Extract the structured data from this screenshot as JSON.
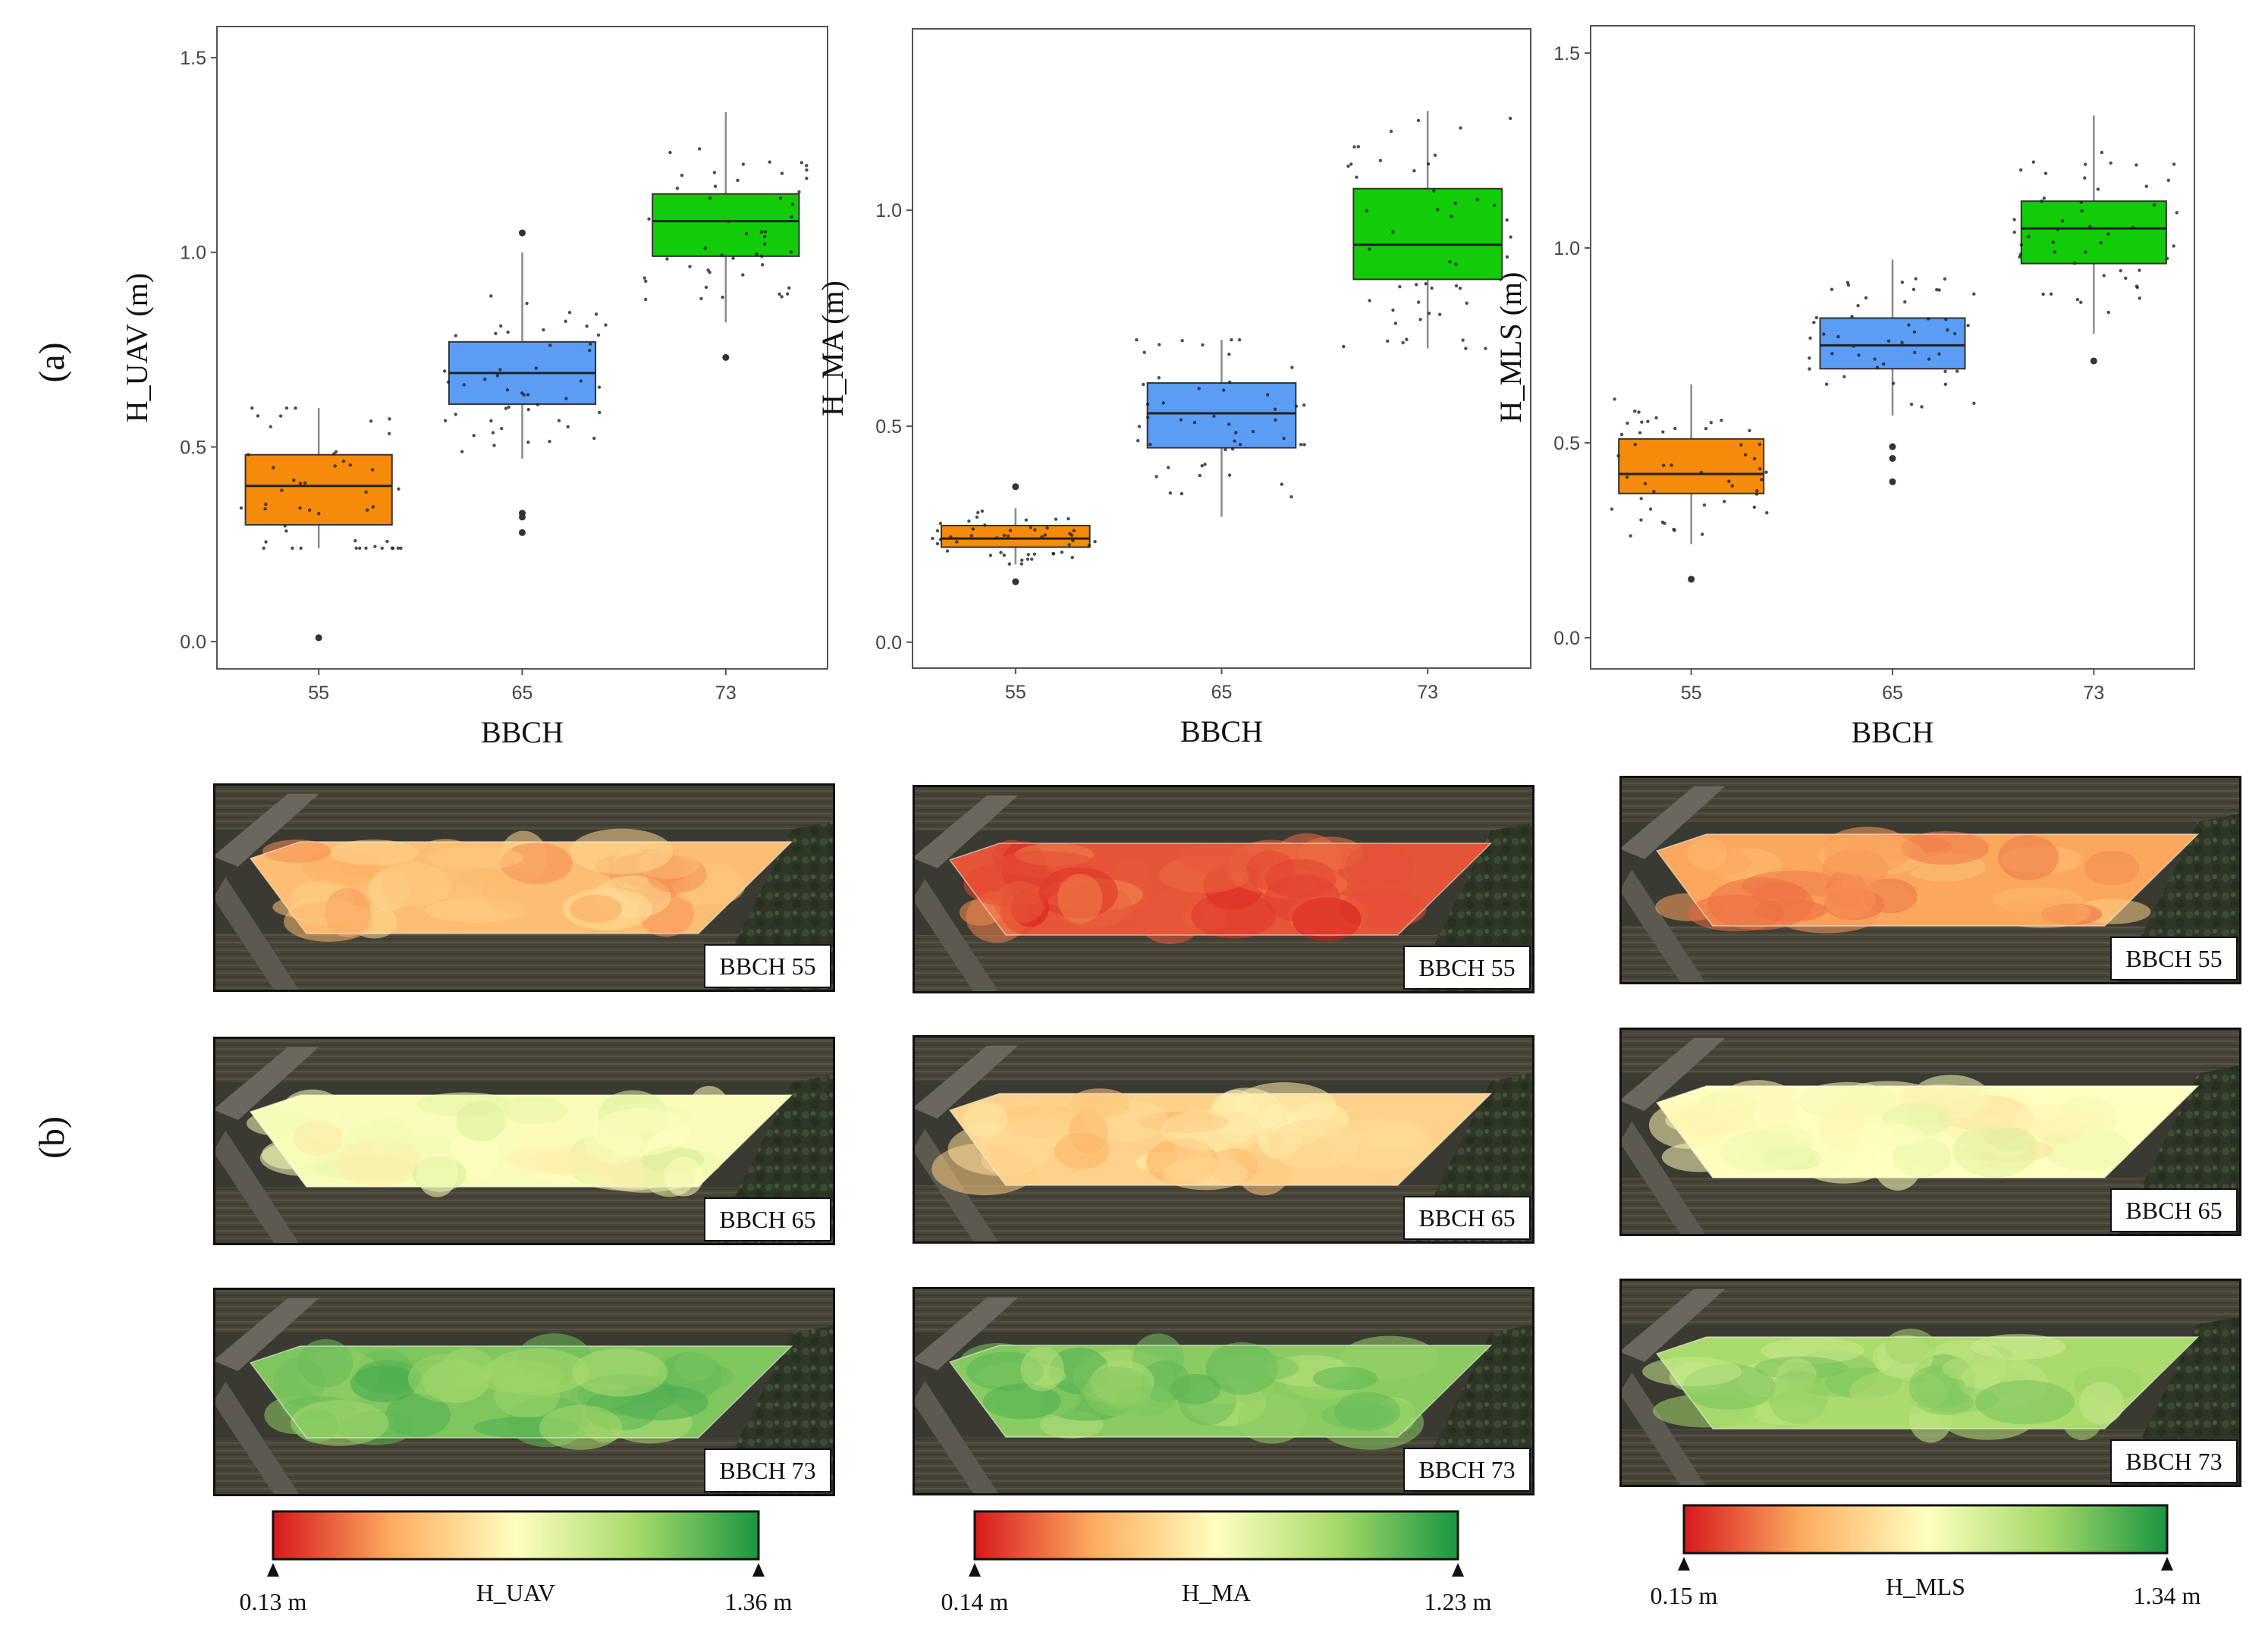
{
  "panel_labels": {
    "a": "(a)",
    "b": "(b)"
  },
  "chart_data": [
    {
      "type": "box",
      "xlabel": "BBCH",
      "ylabel": "H_UAV (m)",
      "categories": [
        "55",
        "65",
        "73"
      ],
      "ylim": [
        -0.07,
        1.58
      ],
      "yticks": [
        "0.0",
        "0.5",
        "1.0",
        "1.5"
      ],
      "colors": [
        "#f58a0b",
        "#5b9cf5",
        "#12cc0a"
      ],
      "boxes": [
        {
          "min": 0.24,
          "q1": 0.3,
          "median": 0.4,
          "q3": 0.48,
          "max": 0.6,
          "outliers": [
            0.01
          ]
        },
        {
          "min": 0.47,
          "q1": 0.61,
          "median": 0.69,
          "q3": 0.77,
          "max": 1.0,
          "outliers": [
            0.28,
            0.32,
            0.33,
            1.05
          ]
        },
        {
          "min": 0.82,
          "q1": 0.99,
          "median": 1.08,
          "q3": 1.15,
          "max": 1.36,
          "outliers": [
            0.73
          ]
        }
      ]
    },
    {
      "type": "box",
      "xlabel": "BBCH",
      "ylabel": "H_MA (m)",
      "categories": [
        "55",
        "65",
        "73"
      ],
      "ylim": [
        -0.06,
        1.42
      ],
      "yticks": [
        "0.0",
        "0.5",
        "1.0"
      ],
      "colors": [
        "#f58a0b",
        "#5b9cf5",
        "#12cc0a"
      ],
      "boxes": [
        {
          "min": 0.18,
          "q1": 0.22,
          "median": 0.24,
          "q3": 0.27,
          "max": 0.31,
          "outliers": [
            0.14,
            0.36
          ]
        },
        {
          "min": 0.29,
          "q1": 0.45,
          "median": 0.53,
          "q3": 0.6,
          "max": 0.7,
          "outliers": []
        },
        {
          "min": 0.68,
          "q1": 0.84,
          "median": 0.92,
          "q3": 1.05,
          "max": 1.23,
          "outliers": []
        }
      ]
    },
    {
      "type": "box",
      "xlabel": "BBCH",
      "ylabel": "H_MLS (m)",
      "categories": [
        "55",
        "65",
        "73"
      ],
      "ylim": [
        -0.08,
        1.57
      ],
      "yticks": [
        "0.0",
        "0.5",
        "1.0",
        "1.5"
      ],
      "colors": [
        "#f58a0b",
        "#5b9cf5",
        "#12cc0a"
      ],
      "boxes": [
        {
          "min": 0.24,
          "q1": 0.37,
          "median": 0.42,
          "q3": 0.51,
          "max": 0.65,
          "outliers": [
            0.15
          ]
        },
        {
          "min": 0.57,
          "q1": 0.69,
          "median": 0.75,
          "q3": 0.82,
          "max": 0.97,
          "outliers": [
            0.4,
            0.46,
            0.49
          ]
        },
        {
          "min": 0.78,
          "q1": 0.96,
          "median": 1.05,
          "q3": 1.12,
          "max": 1.34,
          "outliers": [
            0.71
          ]
        }
      ]
    }
  ],
  "maps": {
    "stage_labels": [
      "BBCH 55",
      "BBCH 65",
      "BBCH 73"
    ],
    "columns": [
      {
        "stage_fill_fractions": [
          0.3,
          0.52,
          0.82
        ]
      },
      {
        "stage_fill_fractions": [
          0.1,
          0.36,
          0.8
        ]
      },
      {
        "stage_fill_fractions": [
          0.24,
          0.5,
          0.74
        ]
      }
    ]
  },
  "colorbars": [
    {
      "title": "H_UAV",
      "min_label": "0.13 m",
      "max_label": "1.36 m"
    },
    {
      "title": "H_MA",
      "min_label": "0.14 m",
      "max_label": "1.23 m"
    },
    {
      "title": "H_MLS",
      "min_label": "0.15 m",
      "max_label": "1.34 m"
    }
  ],
  "colors": {
    "ramp": [
      "#d7191c",
      "#fdae61",
      "#ffffbf",
      "#a6d96a",
      "#1a9641"
    ],
    "satellite_dark": "#3b3b36",
    "satellite_field": "#4f4c45"
  }
}
